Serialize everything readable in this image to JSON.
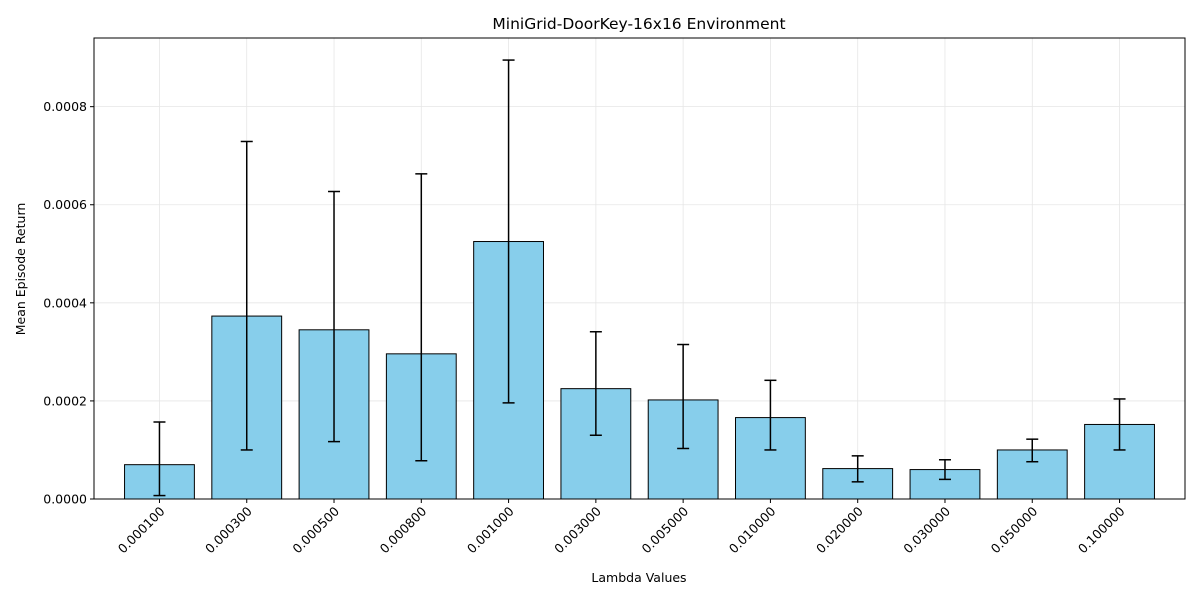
{
  "chart_data": {
    "type": "bar",
    "title": "MiniGrid-DoorKey-16x16 Environment",
    "xlabel": "Lambda Values",
    "ylabel": "Mean Episode Return",
    "categories": [
      "0.000100",
      "0.000300",
      "0.000500",
      "0.000800",
      "0.001000",
      "0.003000",
      "0.005000",
      "0.010000",
      "0.020000",
      "0.030000",
      "0.050000",
      "0.100000"
    ],
    "values": [
      7e-05,
      0.000373,
      0.000345,
      0.000296,
      0.000525,
      0.000225,
      0.000202,
      0.000166,
      6.2e-05,
      6e-05,
      0.0001,
      0.000152
    ],
    "error_low": [
      7e-06,
      0.0001,
      0.000117,
      7.8e-05,
      0.000196,
      0.00013,
      0.000103,
      0.0001,
      3.5e-05,
      4e-05,
      7.6e-05,
      0.0001
    ],
    "error_high": [
      0.000157,
      0.000729,
      0.000627,
      0.000663,
      0.000895,
      0.000341,
      0.000315,
      0.000242,
      8.8e-05,
      8e-05,
      0.000122,
      0.000204
    ],
    "ylim": [
      0,
      0.00094
    ],
    "yticks": [
      0,
      0.0002,
      0.0004,
      0.0006,
      0.0008
    ],
    "ytick_labels": [
      "0.0000",
      "0.0002",
      "0.0004",
      "0.0006",
      "0.0008"
    ],
    "grid": true,
    "colors": {
      "bar_fill": "#87CEEB",
      "bar_edge": "#000000",
      "errorbar": "#000000",
      "grid": "#e6e6e6"
    }
  }
}
